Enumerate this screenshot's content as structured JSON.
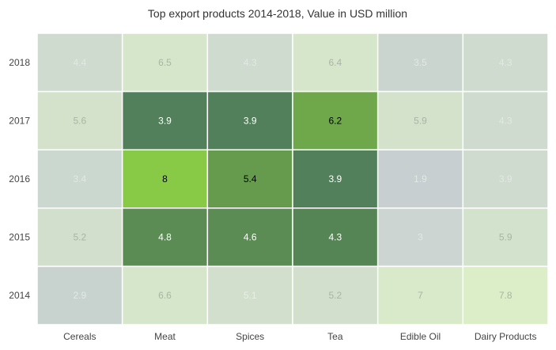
{
  "chart_data": {
    "type": "heatmap",
    "title": "Top export products 2014-2018, Value in USD million",
    "categories": [
      "Cereals",
      "Meat",
      "Spices",
      "Tea",
      "Edible Oil",
      "Dairy Products"
    ],
    "rows": [
      "2018",
      "2017",
      "2016",
      "2015",
      "2014"
    ],
    "values": [
      [
        4.4,
        6.5,
        4.3,
        6.4,
        3.5,
        4.3
      ],
      [
        5.6,
        3.9,
        3.9,
        6.2,
        5.9,
        4.3
      ],
      [
        3.4,
        8,
        5.4,
        3.9,
        1.9,
        3.9
      ],
      [
        5.2,
        4.8,
        4.6,
        4.3,
        3,
        5.9
      ],
      [
        2.9,
        6.6,
        5.1,
        5.2,
        7,
        7.8
      ]
    ],
    "cell_colors": [
      [
        "#cfdbcf",
        "#d6e6cb",
        "#cfdbcf",
        "#d6e6cb",
        "#cbd5cf",
        "#cfdbcf"
      ],
      [
        "#d4e2cc",
        "#52805a",
        "#52805a",
        "#6fa84a",
        "#d4e2cc",
        "#cfdbcf"
      ],
      [
        "#cbd8d0",
        "#88c946",
        "#669b4e",
        "#52805a",
        "#c8cfd1",
        "#cfdbcf"
      ],
      [
        "#d2dfcd",
        "#5a8c53",
        "#5a8c53",
        "#568555",
        "#ccd5d1",
        "#d3e2cc"
      ],
      [
        "#c8d3d0",
        "#d6e6cb",
        "#d1dfcc",
        "#d1dfcc",
        "#d8eaca",
        "#dbeec8"
      ]
    ],
    "label_colors": [
      [
        "#e2e8e2",
        "#a9b5a3",
        "#e2e8e2",
        "#a9b5a3",
        "#e2e8e2",
        "#e2e8e2"
      ],
      [
        "#a9b5a3",
        "#ffffff",
        "#ffffff",
        "#000000",
        "#a9b5a3",
        "#e2e8e2"
      ],
      [
        "#e2e8e2",
        "#000000",
        "#000000",
        "#ffffff",
        "#e2e8e2",
        "#e2e8e2"
      ],
      [
        "#a9b5a3",
        "#ffffff",
        "#ffffff",
        "#ffffff",
        "#e2e8e2",
        "#a9b5a3"
      ],
      [
        "#e2e8e2",
        "#a9b5a3",
        "#e8eee6",
        "#a9b5a3",
        "#a9b5a3",
        "#a9b5a3"
      ]
    ]
  }
}
